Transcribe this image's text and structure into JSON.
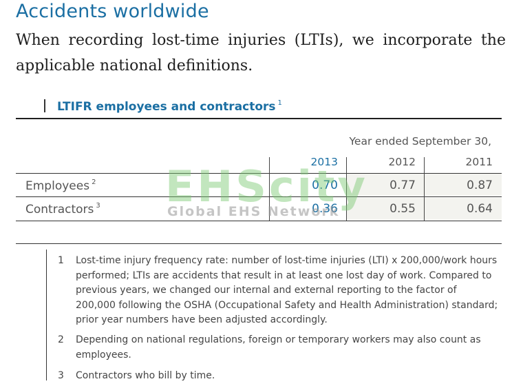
{
  "heading": "Accidents worldwide",
  "intro": "When recording lost-time injuries (LTIs), we incorporate the applicable national definitions.",
  "section": {
    "title": "LTIFR employees and contractors",
    "footnote_ref": "1"
  },
  "table": {
    "caption": "Year ended September 30,",
    "columns": [
      "2013",
      "2012",
      "2011"
    ],
    "rows": [
      {
        "label": "Employees",
        "ref": "2",
        "values": [
          "0.70",
          "0.77",
          "0.87"
        ]
      },
      {
        "label": "Contractors",
        "ref": "3",
        "values": [
          "0.36",
          "0.55",
          "0.64"
        ]
      }
    ]
  },
  "watermark": {
    "big": "EHScity",
    "small": "Global EHS Network"
  },
  "footnotes": [
    {
      "num": "1",
      "text": "Lost-time injury frequency rate: number of lost-time injuries (LTI) x 200,000/work hours performed; LTIs are accidents that result in at least one lost day of work. Compared to previous years, we changed our internal and external reporting to the factor of 200,000 following the OSHA (Occupational Safety and Health Administration) standard; prior year numbers have been adjusted accordingly."
    },
    {
      "num": "2",
      "text": "Depending on national regulations, foreign or temporary workers may also count as employees."
    },
    {
      "num": "3",
      "text": "Contractors who bill by time."
    }
  ],
  "colors": {
    "accent": "#1b6fa3",
    "text": "#333333",
    "row_shade": "#f3f3ef"
  }
}
